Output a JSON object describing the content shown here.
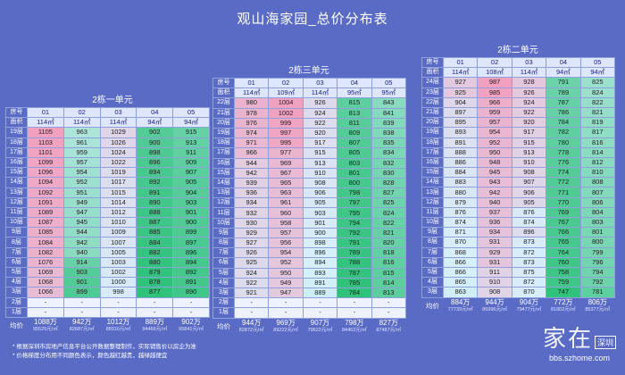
{
  "title": "观山海家园_总价分布表",
  "row_labels": {
    "room": "房号",
    "area": "面积",
    "avg": "均价"
  },
  "units": [
    {
      "id": "u2-1",
      "name": "2栋一单元",
      "rooms": [
        "01",
        "02",
        "03",
        "04",
        "05"
      ],
      "areas": [
        "114㎡",
        "114㎡",
        "114㎡",
        "94㎡",
        "94㎡"
      ],
      "floors": [
        "19层",
        "18层",
        "17层",
        "16层",
        "15层",
        "14层",
        "13层",
        "12层",
        "11层",
        "10层",
        "9层",
        "8层",
        "7层",
        "6层",
        "5层",
        "4层",
        "3层",
        "2层",
        "1层"
      ],
      "values": [
        [
          1105,
          963,
          1029,
          902,
          915
        ],
        [
          1103,
          961,
          1026,
          900,
          913
        ],
        [
          1101,
          959,
          1024,
          898,
          911
        ],
        [
          1099,
          957,
          1022,
          896,
          909
        ],
        [
          1096,
          954,
          1019,
          894,
          907
        ],
        [
          1094,
          952,
          1017,
          892,
          905
        ],
        [
          1092,
          951,
          1015,
          891,
          904
        ],
        [
          1091,
          949,
          1014,
          890,
          903
        ],
        [
          1089,
          947,
          1012,
          888,
          901
        ],
        [
          1087,
          945,
          1010,
          887,
          900
        ],
        [
          1085,
          944,
          1009,
          885,
          899
        ],
        [
          1084,
          942,
          1007,
          884,
          897
        ],
        [
          1082,
          940,
          1005,
          882,
          896
        ],
        [
          1076,
          914,
          1003,
          880,
          894
        ],
        [
          1069,
          903,
          1002,
          879,
          892
        ],
        [
          1068,
          901,
          1000,
          878,
          891
        ],
        [
          1066,
          899,
          998,
          877,
          890
        ],
        [
          "-",
          "-",
          "-",
          "-",
          "-"
        ],
        [
          "-",
          "-",
          "-",
          "-",
          "-"
        ]
      ],
      "totals": [
        "1088万",
        "942万",
        "1012万",
        "889万",
        "902万"
      ],
      "unit_prices": [
        "95525元/㎡",
        "82687元/㎡",
        "88916元/㎡",
        "94466元/㎡",
        "95841元/㎡"
      ]
    },
    {
      "id": "u2-3",
      "name": "2栋三单元",
      "rooms": [
        "01",
        "02",
        "03",
        "04",
        "05"
      ],
      "areas": [
        "114㎡",
        "109㎡",
        "114㎡",
        "95㎡",
        "95㎡"
      ],
      "floors": [
        "22层",
        "21层",
        "20层",
        "19层",
        "18层",
        "17层",
        "16层",
        "15层",
        "14层",
        "13层",
        "12层",
        "11层",
        "10层",
        "9层",
        "8层",
        "7层",
        "6层",
        "5层",
        "4层",
        "3层",
        "2层",
        "1层"
      ],
      "values": [
        [
          980,
          1004,
          926,
          815,
          843
        ],
        [
          978,
          1002,
          924,
          813,
          841
        ],
        [
          976,
          999,
          922,
          811,
          839
        ],
        [
          974,
          997,
          920,
          809,
          838
        ],
        [
          971,
          995,
          917,
          807,
          835
        ],
        [
          966,
          977,
          915,
          805,
          834
        ],
        [
          944,
          969,
          913,
          803,
          832
        ],
        [
          942,
          967,
          910,
          801,
          830
        ],
        [
          939,
          965,
          908,
          800,
          828
        ],
        [
          936,
          963,
          906,
          798,
          827
        ],
        [
          934,
          961,
          905,
          797,
          825
        ],
        [
          932,
          960,
          903,
          795,
          824
        ],
        [
          930,
          958,
          901,
          794,
          822
        ],
        [
          929,
          957,
          900,
          792,
          821
        ],
        [
          927,
          956,
          898,
          791,
          820
        ],
        [
          926,
          954,
          896,
          789,
          818
        ],
        [
          925,
          952,
          894,
          788,
          816
        ],
        [
          924,
          950,
          893,
          787,
          815
        ],
        [
          922,
          949,
          891,
          785,
          814
        ],
        [
          921,
          947,
          889,
          784,
          813
        ],
        [
          "-",
          "-",
          "-",
          "-",
          "-"
        ],
        [
          "-",
          "-",
          "-",
          "-",
          "-"
        ]
      ],
      "totals": [
        "944万",
        "969万",
        "907万",
        "798万",
        "827万"
      ],
      "unit_prices": [
        "82872元/㎡",
        "89222元/㎡",
        "79622元/㎡",
        "84462元/㎡",
        "87487元/㎡"
      ]
    },
    {
      "id": "u2-2",
      "name": "2栋二单元",
      "rooms": [
        "01",
        "02",
        "03",
        "04",
        "05"
      ],
      "areas": [
        "114㎡",
        "108㎡",
        "114㎡",
        "94㎡",
        "94㎡"
      ],
      "floors": [
        "24层",
        "23层",
        "22层",
        "21层",
        "20层",
        "19层",
        "18层",
        "17层",
        "16层",
        "15层",
        "14层",
        "13层",
        "12层",
        "11层",
        "10层",
        "9层",
        "8层",
        "7层",
        "6层",
        "5层",
        "4层",
        "3层"
      ],
      "values": [
        [
          927,
          987,
          928,
          791,
          825
        ],
        [
          925,
          985,
          926,
          789,
          824
        ],
        [
          904,
          966,
          924,
          787,
          822
        ],
        [
          897,
          959,
          922,
          786,
          821
        ],
        [
          895,
          957,
          920,
          784,
          819
        ],
        [
          893,
          954,
          917,
          782,
          817
        ],
        [
          891,
          952,
          915,
          780,
          816
        ],
        [
          888,
          950,
          913,
          778,
          814
        ],
        [
          886,
          948,
          910,
          776,
          812
        ],
        [
          884,
          945,
          908,
          774,
          810
        ],
        [
          883,
          943,
          907,
          772,
          808
        ],
        [
          880,
          942,
          906,
          771,
          807
        ],
        [
          879,
          940,
          905,
          770,
          806
        ],
        [
          876,
          937,
          876,
          769,
          804
        ],
        [
          874,
          936,
          874,
          767,
          803
        ],
        [
          871,
          934,
          896,
          766,
          801
        ],
        [
          870,
          931,
          873,
          765,
          800
        ],
        [
          868,
          929,
          872,
          764,
          799
        ],
        [
          866,
          931,
          873,
          760,
          796
        ],
        [
          866,
          911,
          875,
          758,
          794
        ],
        [
          865,
          910,
          872,
          759,
          792
        ],
        [
          863,
          908,
          870,
          747,
          781
        ]
      ],
      "totals": [
        "884万",
        "944万",
        "904万",
        "772万",
        "806万"
      ],
      "unit_prices": [
        "77739元/㎡",
        "86996元/㎡",
        "79477元/㎡",
        "81802元/㎡",
        "85377元/㎡"
      ]
    }
  ],
  "notes": [
    "* 根据深圳市房地产信息平台公开数据整理制作，实际销售价以房企为准",
    "* 价格梯度分布用不同颜色表示，颜色越红越贵，越绿越便宜"
  ],
  "watermark": {
    "main": "家在",
    "badge": "深圳",
    "url": "bbs.szhome.com"
  },
  "colors": {
    "background": "#5a6bc6",
    "expensive": "#f2a0bf",
    "mid": "#d6f0fb",
    "cheap": "#2ec27a",
    "header": "#dfe6ff"
  }
}
